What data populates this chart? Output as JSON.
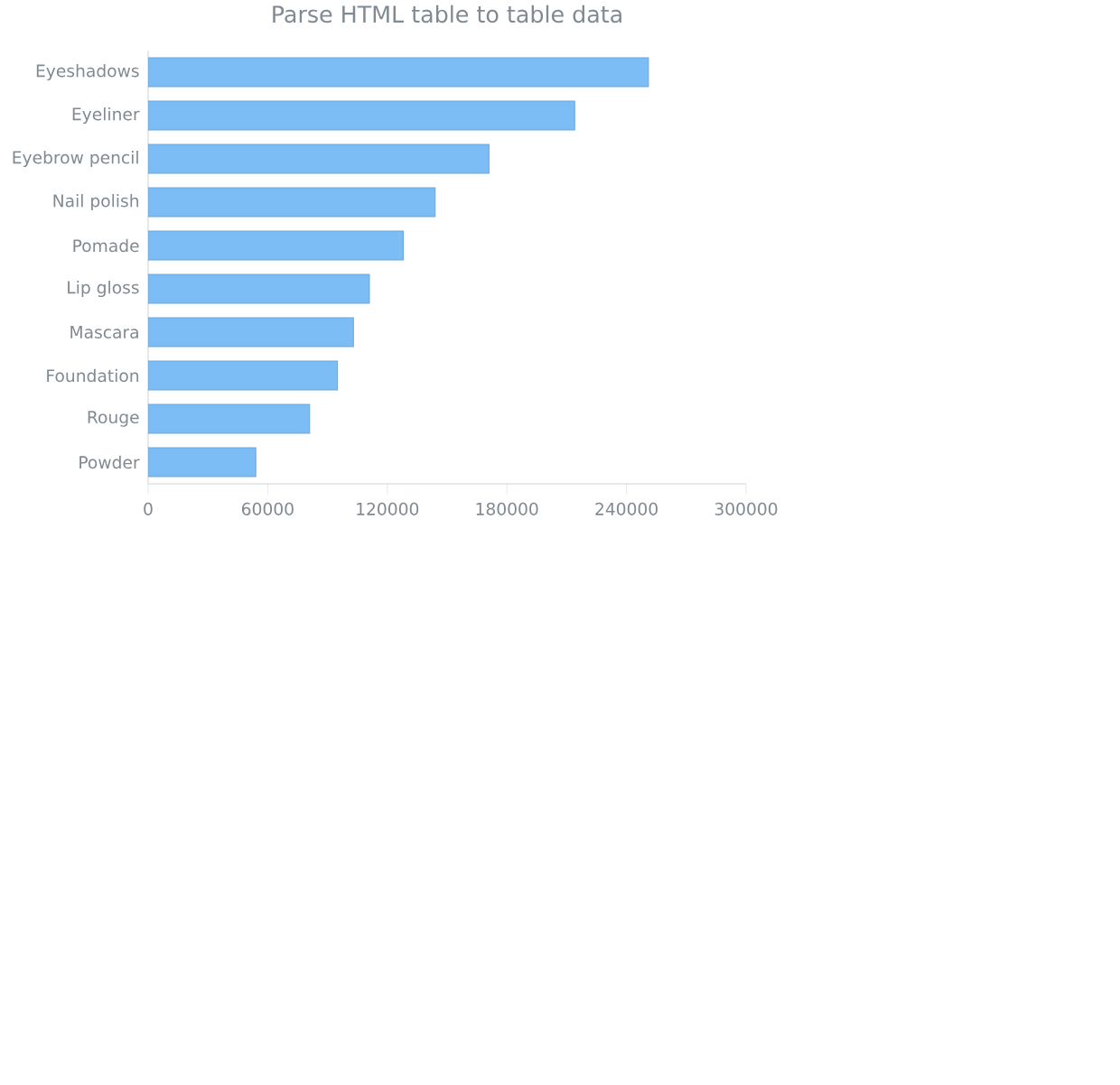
{
  "chart_data": {
    "type": "bar",
    "orientation": "horizontal",
    "title": "Parse HTML table to table data",
    "categories": [
      "Eyeshadows",
      "Eyeliner",
      "Eyebrow pencil",
      "Nail polish",
      "Pomade",
      "Lip gloss",
      "Mascara",
      "Foundation",
      "Rouge",
      "Powder"
    ],
    "values": [
      251000,
      214000,
      171000,
      144000,
      128000,
      111000,
      103000,
      95000,
      81000,
      54000
    ],
    "color": "#7cbdf5",
    "xlim": [
      0,
      300000
    ],
    "xticks": [
      0,
      60000,
      120000,
      180000,
      240000,
      300000
    ]
  }
}
